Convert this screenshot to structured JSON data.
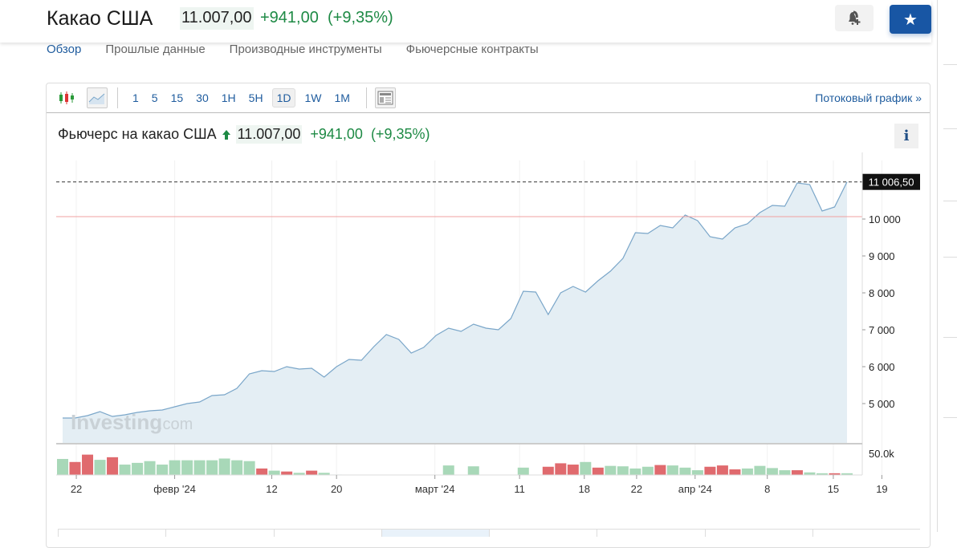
{
  "header": {
    "title": "Какао США",
    "price": "11.007,00",
    "change": "+941,00",
    "change_pct": "(+9,35%)"
  },
  "nav": [
    "Обзор",
    "Прошлые данные",
    "Производные инструменты",
    "Фьючерсные контракты"
  ],
  "toolbar": {
    "intervals": [
      "1",
      "5",
      "15",
      "30",
      "1H",
      "5H",
      "1D",
      "1W",
      "1M"
    ],
    "active_interval": "1D",
    "stream_label": "Потоковый график",
    "stream_chevron": "»"
  },
  "chart_header": {
    "name": "Фьючерс на какао США",
    "price": "11.007,00",
    "change": "+941,00",
    "change_pct": "(+9,35%)",
    "info": "i"
  },
  "watermark": {
    "brand": "Investing",
    ".com": ".com"
  },
  "colors": {
    "up": "#1e8a45",
    "accent": "#1856a4",
    "line": "#7aa6c9",
    "area": "#e4eef4",
    "vol_up": "#a8d8b8",
    "vol_down": "#e06a6e",
    "prev_close": "#f0a0a0"
  },
  "chart_data": {
    "type": "area",
    "last_label": "11 006,50",
    "last_value": 11006.5,
    "prev_close": 10066,
    "ylim": [
      4300,
      11400
    ],
    "yticks": [
      {
        "v": 10000,
        "label": "10 000"
      },
      {
        "v": 9000,
        "label": "9 000"
      },
      {
        "v": 8000,
        "label": "8 000"
      },
      {
        "v": 7000,
        "label": "7 000"
      },
      {
        "v": 6000,
        "label": "6 000"
      },
      {
        "v": 5000,
        "label": "5 000"
      }
    ],
    "prices": [
      4609,
      4609,
      4674,
      4783,
      4652,
      4696,
      4761,
      4804,
      4826,
      4913,
      5000,
      5043,
      5217,
      5239,
      5413,
      5804,
      5891,
      5870,
      6000,
      5935,
      5957,
      5717,
      6000,
      6196,
      6174,
      6543,
      6870,
      6739,
      6370,
      6522,
      6848,
      7043,
      6957,
      7152,
      7043,
      7000,
      7304,
      8043,
      8022,
      7413,
      8000,
      8174,
      8022,
      8326,
      8587,
      8935,
      9630,
      9609,
      9826,
      9761,
      10109,
      9957,
      9522,
      9457,
      9761,
      9870,
      10174,
      10370,
      10348,
      10978,
      10935,
      10217,
      10326,
      11006.5
    ],
    "volume_tick": {
      "v": 50,
      "label": "50.0k"
    },
    "volumes_k": [
      37,
      30,
      47,
      35,
      41,
      24,
      28,
      32,
      24,
      34,
      34,
      34,
      34,
      38,
      34,
      32,
      15,
      10,
      8,
      5,
      10,
      5,
      1,
      0,
      0,
      0,
      0,
      0,
      0,
      0,
      0,
      22,
      0,
      20,
      0,
      0,
      0,
      17,
      0,
      19,
      27,
      24,
      30,
      17,
      21,
      20,
      15,
      19,
      23,
      22,
      17,
      11,
      19,
      22,
      13,
      15,
      21,
      16,
      11,
      11,
      6,
      4,
      4,
      4,
      0,
      0
    ],
    "volume_dirs": "udduduuuuuuuuuuudududuu........u.u...u.ddduduuuuduuuddduuuuduudu..",
    "xticks": [
      {
        "i": 1.1,
        "label": "22"
      },
      {
        "i": 9,
        "label": "февр '24"
      },
      {
        "i": 16.8,
        "label": "12"
      },
      {
        "i": 22,
        "label": "20"
      },
      {
        "i": 29.9,
        "label": "март '24"
      },
      {
        "i": 36.7,
        "label": "11"
      },
      {
        "i": 41.9,
        "label": "18"
      },
      {
        "i": 46.1,
        "label": "22"
      },
      {
        "i": 50.8,
        "label": "апр '24"
      },
      {
        "i": 56.6,
        "label": "8"
      },
      {
        "i": 61.9,
        "label": "15"
      },
      {
        "i": 65.8,
        "label": "19"
      }
    ]
  }
}
